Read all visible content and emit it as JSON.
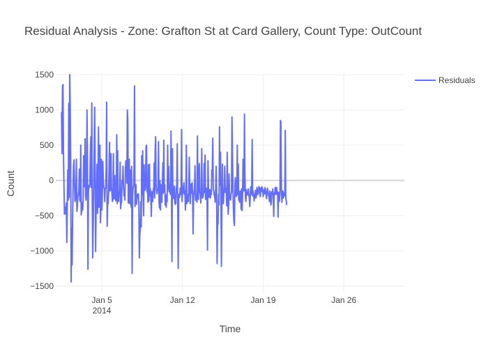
{
  "chart_data": {
    "type": "line",
    "title": "Residual Analysis - Zone: Grafton St at Card Gallery, Count Type: OutCount",
    "xlabel": "Time",
    "ylabel": "Count",
    "xlim": [
      "2014-01-01T00:00",
      "2014-01-31T06:00"
    ],
    "ylim": [
      -1600,
      1520
    ],
    "x_ticks": [
      {
        "date": "2014-01-05",
        "label": "Jan 5",
        "sublabel": "2014"
      },
      {
        "date": "2014-01-12",
        "label": "Jan 12",
        "sublabel": ""
      },
      {
        "date": "2014-01-19",
        "label": "Jan 19",
        "sublabel": ""
      },
      {
        "date": "2014-01-26",
        "label": "Jan 26",
        "sublabel": ""
      }
    ],
    "y_ticks": [
      -1500,
      -1000,
      -500,
      0,
      500,
      1000,
      1500
    ],
    "y_tick_labels": [
      "−1500",
      "−1000",
      "−500",
      "0",
      "500",
      "1000",
      "1500"
    ],
    "grid": true,
    "legend_position": "top-right",
    "series": [
      {
        "name": "Residuals",
        "color": "#636efa",
        "x_start": "2014-01-01T12:00",
        "x_step_hours": 1,
        "values": [
          970,
          380,
          1340,
          1360,
          420,
          -50,
          -480,
          -460,
          -380,
          -470,
          -320,
          -880,
          -300,
          150,
          -280,
          1090,
          -240,
          1500,
          1090,
          350,
          -1440,
          -680,
          -1200,
          -560,
          -100,
          200,
          290,
          -50,
          -300,
          -260,
          -140,
          300,
          -440,
          -370,
          -230,
          -210,
          -150,
          160,
          -280,
          -300,
          500,
          -490,
          -430,
          -310,
          -420,
          -290,
          350,
          300,
          -90,
          590,
          -220,
          -280,
          -100,
          1000,
          350,
          -1260,
          -150,
          -70,
          -100,
          -60,
          390,
          620,
          -100,
          1100,
          -300,
          -1100,
          -620,
          -150,
          450,
          1040,
          130,
          -1010,
          -370,
          -90,
          230,
          -470,
          140,
          760,
          -380,
          -220,
          500,
          -600,
          -370,
          300,
          -420,
          -200,
          270,
          10,
          -100,
          -120,
          -300,
          -110,
          -110,
          180,
          1110,
          -650,
          -310,
          -330,
          -190,
          210,
          540,
          -150,
          -80,
          380,
          -100,
          -190,
          -300,
          -270,
          380,
          -170,
          -260,
          70,
          -230,
          -290,
          -170,
          650,
          -330,
          420,
          -200,
          -300,
          -160,
          -200,
          260,
          -400,
          -330,
          -310,
          0,
          -40,
          200,
          -80,
          -220,
          -130,
          -280,
          180,
          280,
          260,
          -40,
          1000,
          870,
          -320,
          -130,
          300,
          -330,
          150,
          -300,
          -380,
          200,
          -1320,
          -200,
          -110,
          -70,
          210,
          1340,
          -370,
          -160,
          -60,
          -340,
          -250,
          -200,
          -240,
          -190,
          -330,
          -1100,
          -770,
          -700,
          -300,
          -660,
          350,
          -200,
          420,
          -260,
          -500,
          220,
          -120,
          -140,
          -80,
          470,
          500,
          -160,
          -130,
          -310,
          220,
          -290,
          230,
          -220,
          -120,
          -260,
          -510,
          -160,
          -240,
          -300,
          -130,
          -100,
          250,
          -250,
          420,
          620,
          -70,
          -160,
          -190,
          -130,
          -100,
          550,
          -300,
          -390,
          0,
          -420,
          -60,
          -200,
          -310,
          -50,
          250,
          -180,
          570,
          -160,
          -60,
          -350,
          -200,
          -380,
          -220,
          -300,
          500,
          -120,
          200,
          -160,
          -50,
          -170,
          -200,
          700,
          -140,
          -1150,
          450,
          -180,
          -230,
          -260,
          -80,
          -320,
          -340,
          -320,
          -120,
          -70,
          520,
          -380,
          -1250,
          -200,
          -220,
          -240,
          -110,
          -200,
          -80,
          720,
          -300,
          -150,
          -180,
          -80,
          -30,
          -200,
          -150,
          -420,
          -200,
          500,
          -330,
          -250,
          -200,
          -300,
          -120,
          330,
          -90,
          -330,
          -180,
          -50,
          -180,
          -30,
          -210,
          -760,
          -250,
          -170,
          -120,
          210,
          -280,
          -200,
          -260,
          -310,
          630,
          -150,
          -270,
          120,
          240,
          -160,
          -200,
          -320,
          -200,
          450,
          -190,
          -250,
          -230,
          -160,
          240,
          -170,
          360,
          -270,
          -200,
          -110,
          -170,
          -990,
          280,
          -120,
          -240,
          -230,
          -130,
          -250,
          -150,
          -200,
          150,
          120,
          600,
          -130,
          -150,
          -210,
          -220,
          -310,
          -130,
          200,
          -160,
          -1180,
          -600,
          -620,
          -200,
          -350,
          760,
          -70,
          400,
          -220,
          -1220,
          -310,
          230,
          -200,
          -330,
          -180,
          -110,
          200,
          -170,
          -110,
          -120,
          -360,
          400,
          -160,
          -480,
          -350,
          90,
          -230,
          -260,
          -280,
          -200,
          -160,
          900,
          400,
          -120,
          -400,
          -580,
          -640,
          -80,
          40,
          -180,
          -230,
          -200,
          500,
          -200,
          230,
          -280,
          -190,
          -310,
          -150,
          -200,
          -410,
          -120,
          -430,
          -220,
          300,
          -100,
          -150,
          940,
          80,
          -240,
          -300,
          -130,
          -200,
          -180,
          -210,
          -120,
          -190,
          -240,
          -370,
          -240,
          -90,
          -200,
          -170,
          580,
          -220,
          -150,
          -200,
          -290,
          -240,
          -200,
          -140,
          -250,
          -210,
          -100,
          -150,
          -200,
          -160,
          -90,
          -100,
          -190,
          -230,
          -110,
          -160,
          -90,
          -100,
          -150,
          -230,
          -170,
          -130,
          -190,
          -100,
          -150,
          -200,
          -260,
          -170,
          -110,
          -160,
          -200,
          -240,
          -300,
          -150,
          -180,
          -350,
          -310,
          -160,
          -200,
          -120,
          -230,
          -510,
          -180,
          -190,
          -100,
          -200,
          -150,
          -100,
          -200,
          -160,
          -520,
          -170,
          -300,
          -280,
          -150,
          850,
          830,
          -180,
          -310,
          -200,
          -150,
          -250,
          -180,
          -220,
          -200,
          710,
          -250,
          -290,
          -350
        ]
      }
    ]
  }
}
